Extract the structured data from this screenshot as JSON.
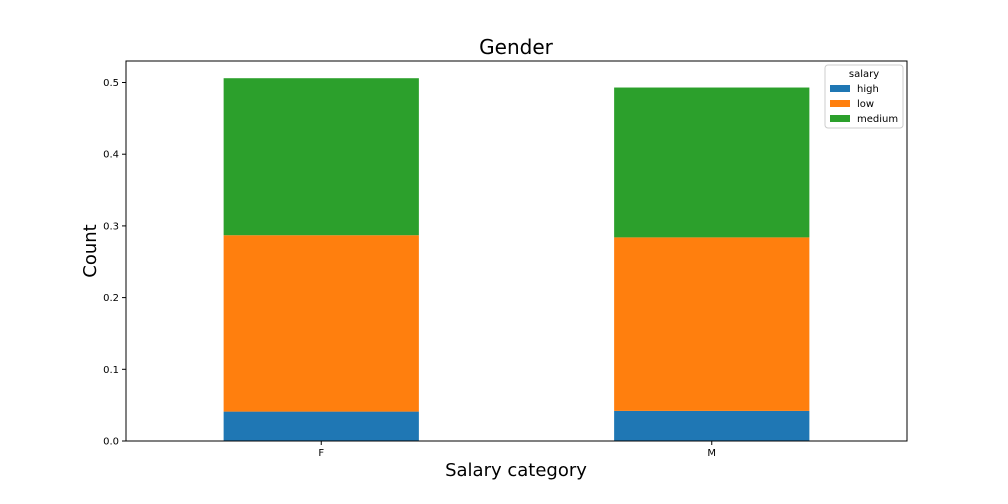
{
  "chart_data": {
    "type": "bar",
    "stacked": true,
    "title": "Gender",
    "xlabel": "Salary category",
    "ylabel": "Count",
    "categories": [
      "F",
      "M"
    ],
    "series": [
      {
        "name": "high",
        "color": "#1f77b4",
        "values": [
          0.041,
          0.042
        ]
      },
      {
        "name": "low",
        "color": "#ff7f0e",
        "values": [
          0.246,
          0.242
        ]
      },
      {
        "name": "medium",
        "color": "#2ca02c",
        "values": [
          0.219,
          0.209
        ]
      }
    ],
    "ylim": [
      0,
      0.53
    ],
    "yticks": [
      "0.0",
      "0.1",
      "0.2",
      "0.3",
      "0.4",
      "0.5"
    ],
    "grid": false,
    "legend": {
      "title": "salary",
      "placement": "top-right"
    }
  }
}
